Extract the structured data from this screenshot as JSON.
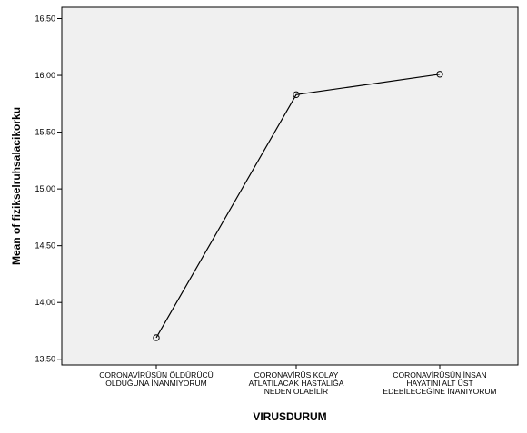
{
  "chart_data": {
    "type": "line",
    "xlabel": "VIRUSDURUM",
    "ylabel": "Mean of fizikselruhsalacikorku",
    "ylim": [
      13.45,
      16.6
    ],
    "yticks": [
      "13,50",
      "14,00",
      "14,50",
      "15,00",
      "15,50",
      "16,00",
      "16,50"
    ],
    "ytick_values": [
      13.5,
      14.0,
      14.5,
      15.0,
      15.5,
      16.0,
      16.5
    ],
    "categories": [
      [
        "CORONAVİRÜSÜN ÖLDÜRÜCÜ",
        "OLDUĞUNA İNANMIYORUM"
      ],
      [
        "CORONAVİRÜS KOLAY",
        "ATLATILACAK HASTALIĞA",
        "NEDEN OLABİLİR"
      ],
      [
        "CORONAVİRÜSÜN İNSAN",
        "HAYATINI ALT ÜST",
        "EDEBİLECEĞİNE İNANIYORUM"
      ]
    ],
    "values": [
      13.69,
      15.83,
      16.01
    ],
    "grid": false,
    "colors": {
      "plot_background": "#f0f0f0",
      "line": "#000000",
      "frame": "#000000"
    }
  }
}
